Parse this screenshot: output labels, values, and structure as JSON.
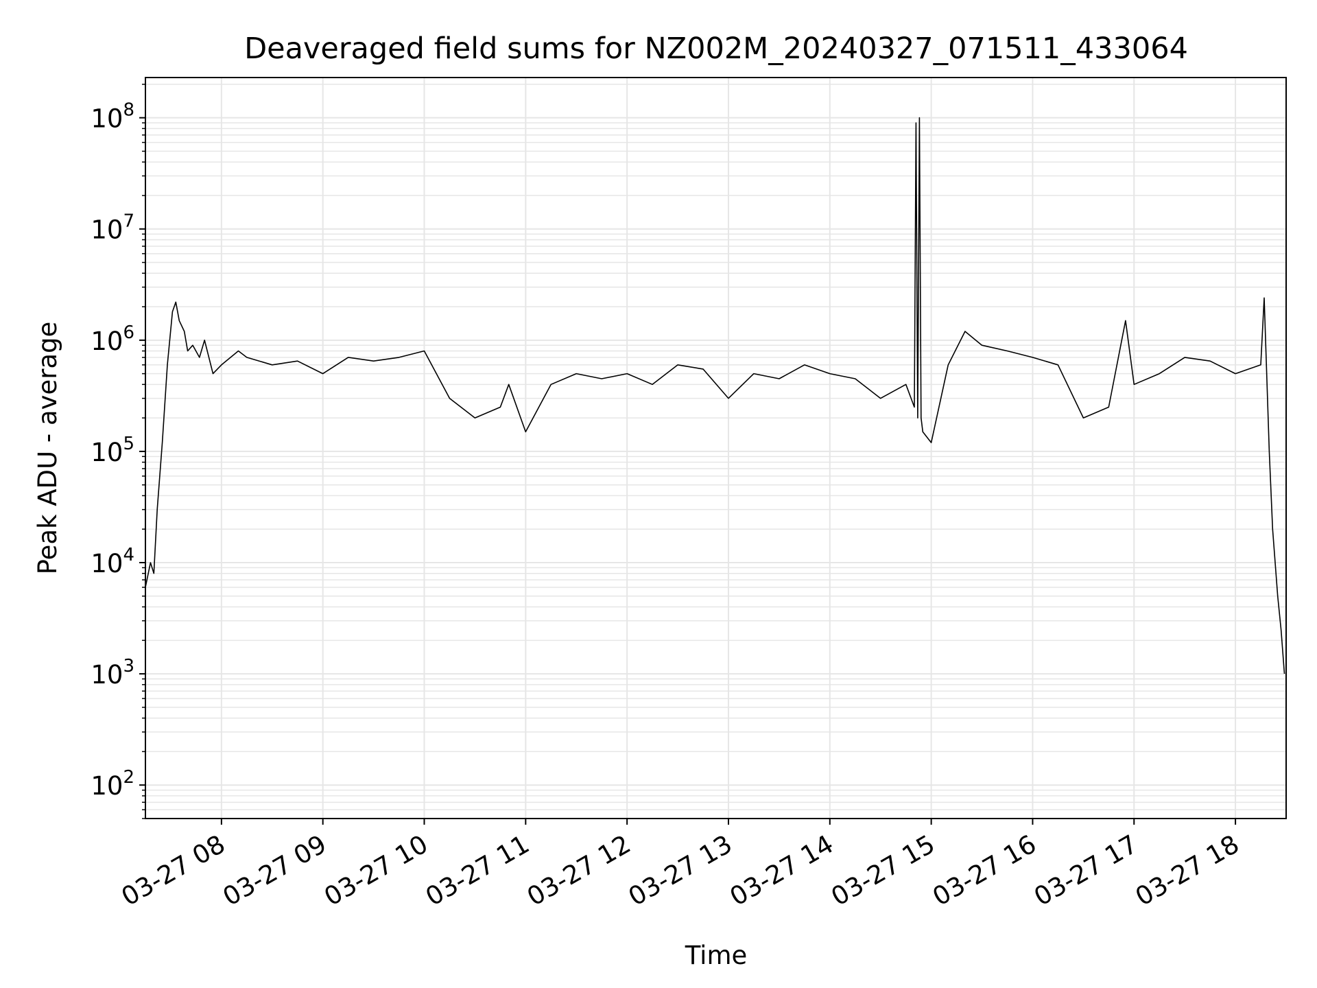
{
  "chart_data": {
    "type": "line",
    "title": "Deaveraged field sums for NZ002M_20240327_071511_433064",
    "xlabel": "Time",
    "ylabel": "Peak ADU - average",
    "y_scale": "log",
    "ylim": [
      50,
      230000000
    ],
    "xlim": [
      "2024-03-27 07:15",
      "2024-03-27 18:30"
    ],
    "grid": true,
    "x_ticks": [
      {
        "value": "2024-03-27 08:00",
        "label": "03-27 08"
      },
      {
        "value": "2024-03-27 09:00",
        "label": "03-27 09"
      },
      {
        "value": "2024-03-27 10:00",
        "label": "03-27 10"
      },
      {
        "value": "2024-03-27 11:00",
        "label": "03-27 11"
      },
      {
        "value": "2024-03-27 12:00",
        "label": "03-27 12"
      },
      {
        "value": "2024-03-27 13:00",
        "label": "03-27 13"
      },
      {
        "value": "2024-03-27 14:00",
        "label": "03-27 14"
      },
      {
        "value": "2024-03-27 15:00",
        "label": "03-27 15"
      },
      {
        "value": "2024-03-27 16:00",
        "label": "03-27 16"
      },
      {
        "value": "2024-03-27 17:00",
        "label": "03-27 17"
      },
      {
        "value": "2024-03-27 18:00",
        "label": "03-27 18"
      }
    ],
    "y_ticks": [
      {
        "value": 100,
        "base": "10",
        "exp": "2"
      },
      {
        "value": 1000,
        "base": "10",
        "exp": "3"
      },
      {
        "value": 10000,
        "base": "10",
        "exp": "4"
      },
      {
        "value": 100000,
        "base": "10",
        "exp": "5"
      },
      {
        "value": 1000000,
        "base": "10",
        "exp": "6"
      },
      {
        "value": 10000000,
        "base": "10",
        "exp": "7"
      },
      {
        "value": 100000000,
        "base": "10",
        "exp": "8"
      }
    ],
    "line_color": "#000000",
    "grid_color": "#e6e6e6",
    "series": [
      {
        "x": [
          "2024-03-27 07:15",
          "2024-03-27 07:18",
          "2024-03-27 07:20",
          "2024-03-27 07:22",
          "2024-03-27 07:25",
          "2024-03-27 07:28",
          "2024-03-27 07:31",
          "2024-03-27 07:33",
          "2024-03-27 07:35",
          "2024-03-27 07:38",
          "2024-03-27 07:40",
          "2024-03-27 07:43",
          "2024-03-27 07:47",
          "2024-03-27 07:50",
          "2024-03-27 07:55",
          "2024-03-27 08:00",
          "2024-03-27 08:10",
          "2024-03-27 08:15",
          "2024-03-27 08:30",
          "2024-03-27 08:45",
          "2024-03-27 09:00",
          "2024-03-27 09:15",
          "2024-03-27 09:30",
          "2024-03-27 09:45",
          "2024-03-27 10:00",
          "2024-03-27 10:15",
          "2024-03-27 10:30",
          "2024-03-27 10:45",
          "2024-03-27 10:50",
          "2024-03-27 11:00",
          "2024-03-27 11:15",
          "2024-03-27 11:30",
          "2024-03-27 11:45",
          "2024-03-27 12:00",
          "2024-03-27 12:15",
          "2024-03-27 12:30",
          "2024-03-27 12:45",
          "2024-03-27 13:00",
          "2024-03-27 13:15",
          "2024-03-27 13:30",
          "2024-03-27 13:45",
          "2024-03-27 14:00",
          "2024-03-27 14:15",
          "2024-03-27 14:30",
          "2024-03-27 14:45",
          "2024-03-27 14:50",
          "2024-03-27 14:51",
          "2024-03-27 14:52",
          "2024-03-27 14:53",
          "2024-03-27 14:54",
          "2024-03-27 14:55",
          "2024-03-27 15:00",
          "2024-03-27 15:10",
          "2024-03-27 15:20",
          "2024-03-27 15:30",
          "2024-03-27 15:45",
          "2024-03-27 16:00",
          "2024-03-27 16:15",
          "2024-03-27 16:30",
          "2024-03-27 16:45",
          "2024-03-27 16:55",
          "2024-03-27 17:00",
          "2024-03-27 17:15",
          "2024-03-27 17:30",
          "2024-03-27 17:45",
          "2024-03-27 18:00",
          "2024-03-27 18:15",
          "2024-03-27 18:17",
          "2024-03-27 18:20",
          "2024-03-27 18:22",
          "2024-03-27 18:25",
          "2024-03-27 18:27",
          "2024-03-27 18:29"
        ],
        "y": [
          6000,
          10000,
          8000,
          30000,
          120000,
          600000,
          1800000,
          2200000,
          1500000,
          1200000,
          800000,
          900000,
          700000,
          1000000,
          500000,
          600000,
          800000,
          700000,
          600000,
          650000,
          500000,
          700000,
          650000,
          700000,
          800000,
          300000,
          200000,
          250000,
          400000,
          150000,
          400000,
          500000,
          450000,
          500000,
          400000,
          600000,
          550000,
          300000,
          500000,
          450000,
          600000,
          500000,
          450000,
          300000,
          400000,
          250000,
          90000000,
          200000,
          100000000,
          200000,
          150000,
          120000,
          600000,
          1200000,
          900000,
          800000,
          700000,
          600000,
          200000,
          250000,
          1500000,
          400000,
          500000,
          700000,
          650000,
          500000,
          600000,
          2400000,
          100000,
          20000,
          5000,
          2500,
          1000
        ]
      }
    ]
  }
}
